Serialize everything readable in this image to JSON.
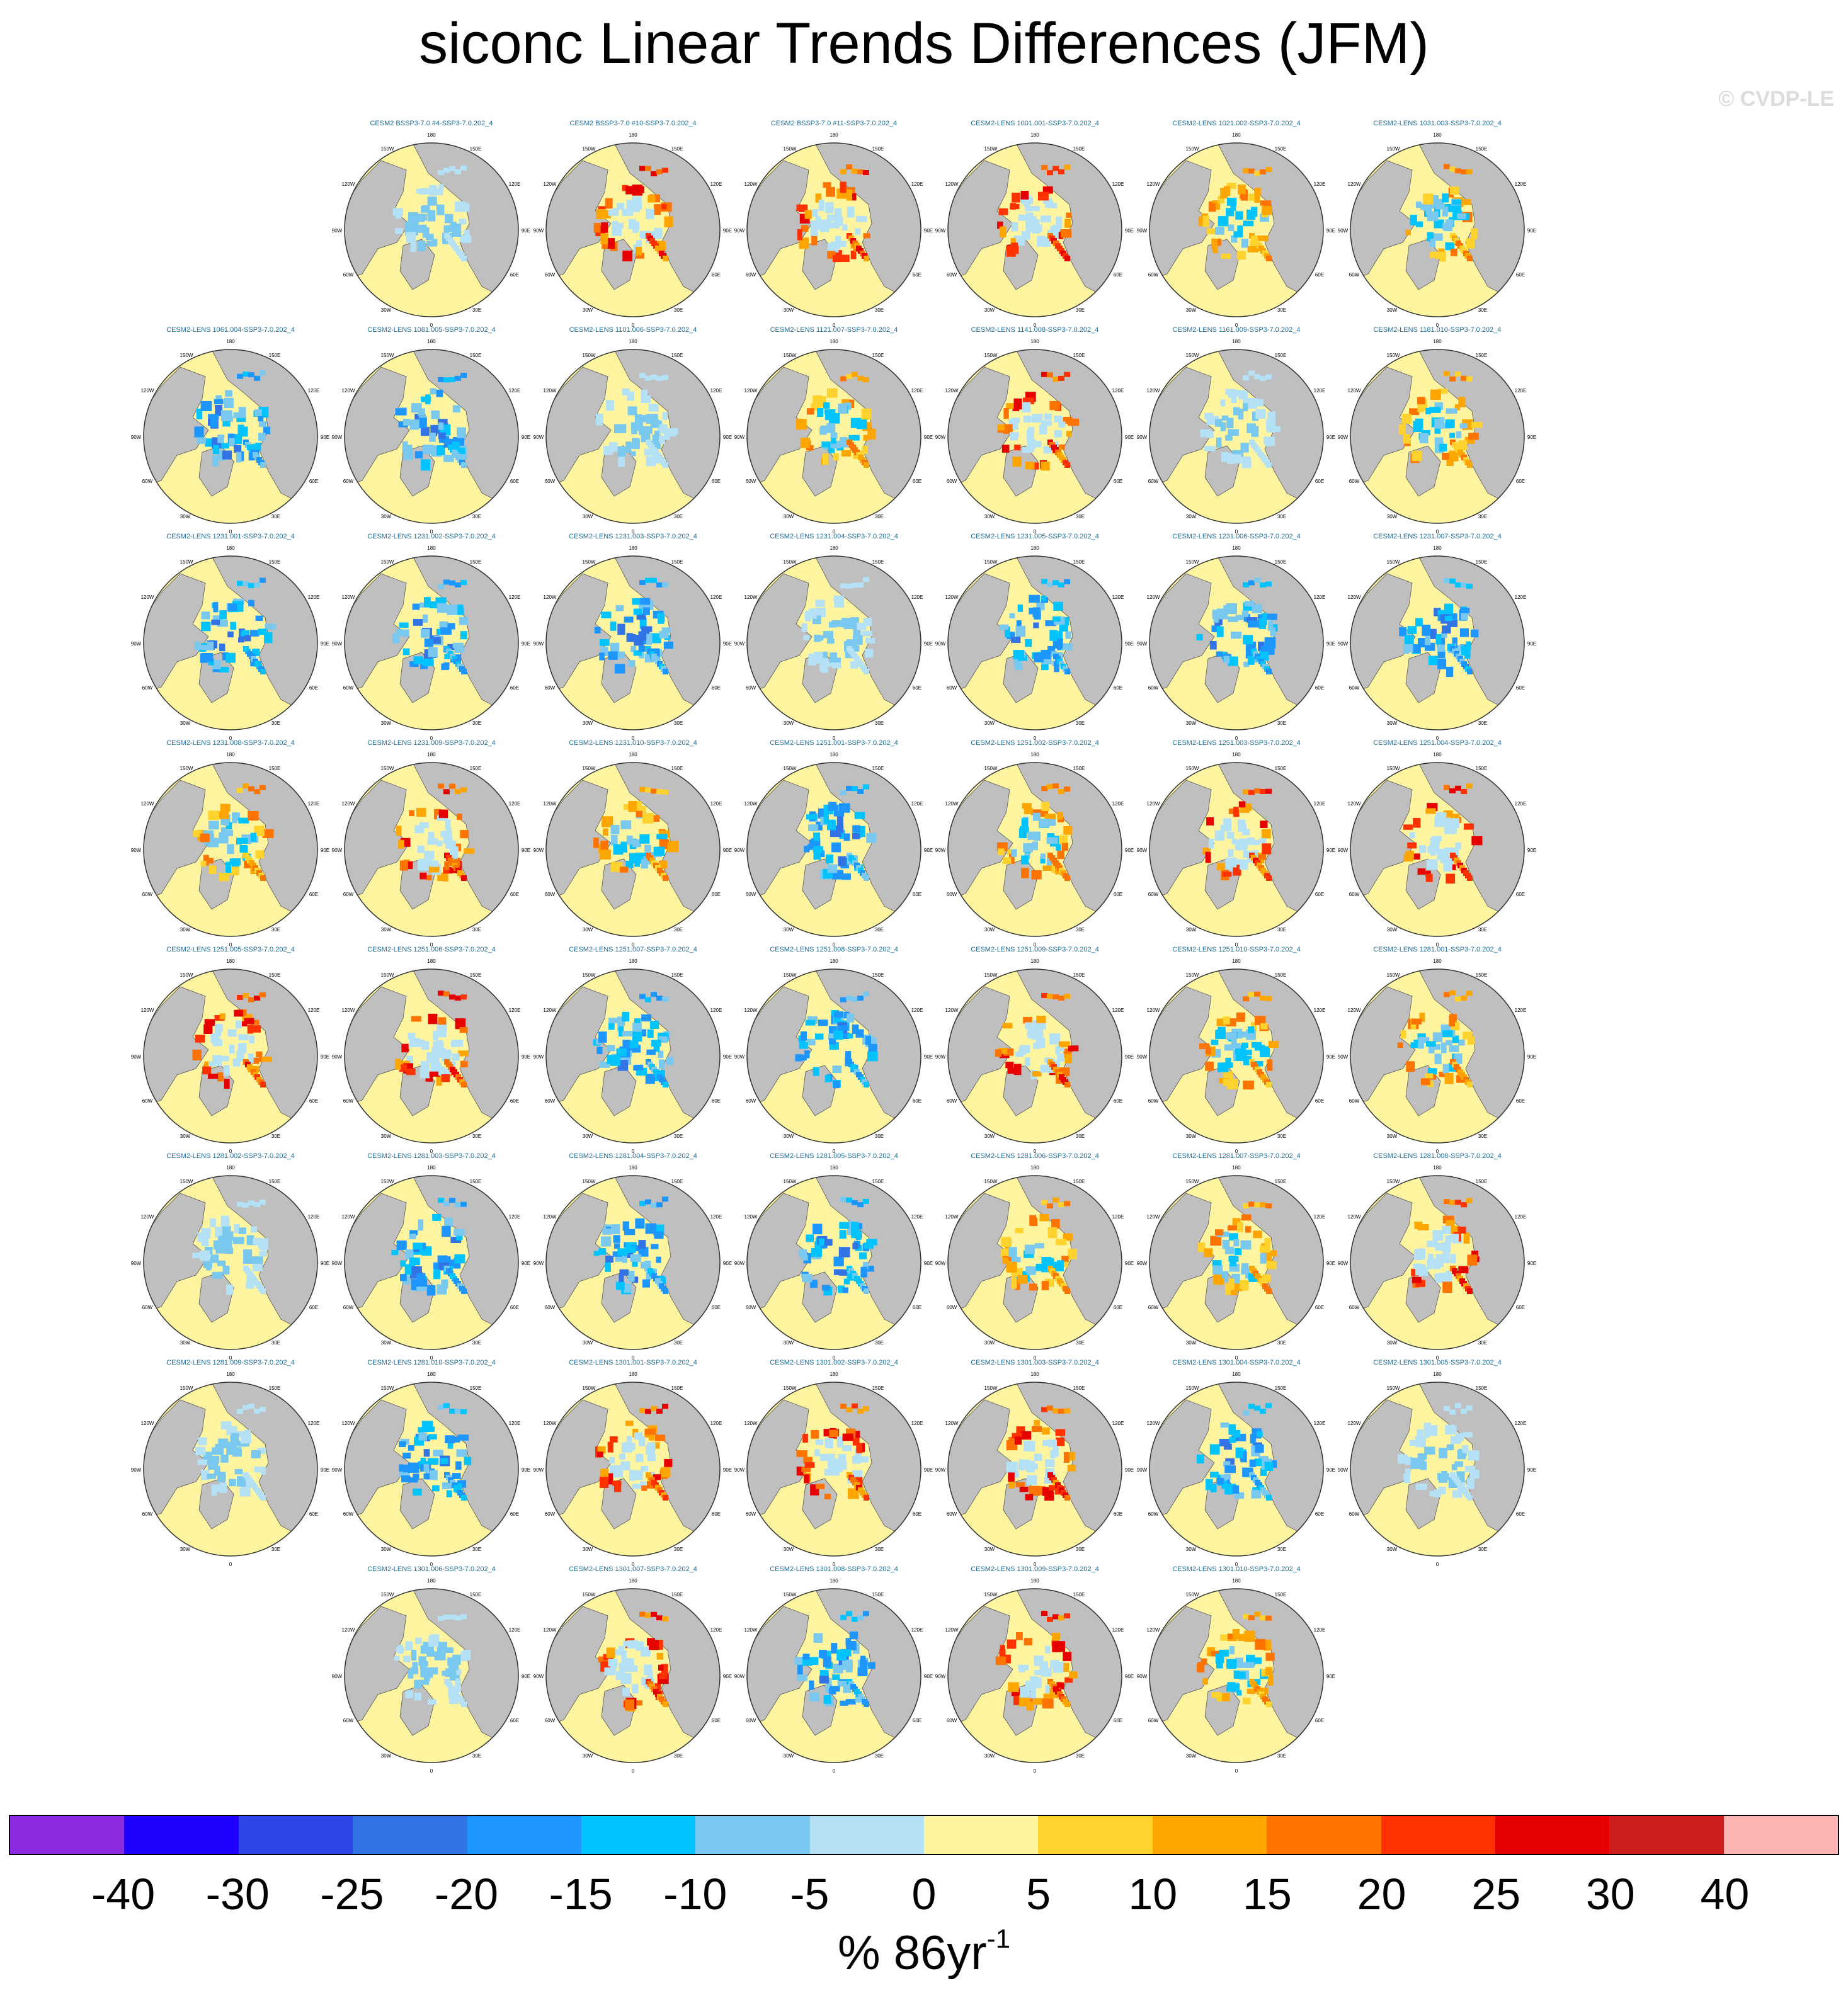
{
  "title": "siconc Linear Trends Differences (JFM)",
  "watermark": "© CVDP-LE",
  "colorbar": {
    "units_main": "% 86yr",
    "units_exp": "-1",
    "colors": [
      "#8a2be2",
      "#1e00ff",
      "#2d46e6",
      "#3273e6",
      "#1e96ff",
      "#00c3ff",
      "#78c8f0",
      "#b4e1f5",
      "#fff5a0",
      "#ffd22d",
      "#ffa500",
      "#ff7300",
      "#ff3200",
      "#e60000",
      "#cd1e1e",
      "#ffb4b4"
    ],
    "labels": [
      "-40",
      "-30",
      "-25",
      "-20",
      "-15",
      "-10",
      "-5",
      "0",
      "5",
      "10",
      "15",
      "20",
      "25",
      "30",
      "40"
    ]
  },
  "map_colors": {
    "ocean": "#fff5a0",
    "land": "#bfbfbf",
    "outline": "#333333"
  },
  "map_labels": [
    "180",
    "150W",
    "150E",
    "120W",
    "120E",
    "90W",
    "90E",
    "60W",
    "60E",
    "30W",
    "30E",
    "0"
  ],
  "panels": [
    {
      "label": "CESM2 BSSP3-7.0 #4-SSP3-7.0.202_4",
      "pattern": "light"
    },
    {
      "label": "CESM2 BSSP3-7.0 #10-SSP3-7.0.202_4",
      "pattern": "warm"
    },
    {
      "label": "CESM2 BSSP3-7.0 #11-SSP3-7.0.202_4",
      "pattern": "warm"
    },
    {
      "label": "CESM2-LENS 1001.001-SSP3-7.0.202_4",
      "pattern": "warm"
    },
    {
      "label": "CESM2-LENS 1021.002-SSP3-7.0.202_4",
      "pattern": "mixed"
    },
    {
      "label": "CESM2-LENS 1031.003-SSP3-7.0.202_4",
      "pattern": "mixed"
    },
    {
      "label": "CESM2-LENS 1061.004-SSP3-7.0.202_4",
      "pattern": "cool"
    },
    {
      "label": "CESM2-LENS 1081.005-SSP3-7.0.202_4",
      "pattern": "cool"
    },
    {
      "label": "CESM2-LENS 1101.006-SSP3-7.0.202_4",
      "pattern": "light"
    },
    {
      "label": "CESM2-LENS 1121.007-SSP3-7.0.202_4",
      "pattern": "mixed"
    },
    {
      "label": "CESM2-LENS 1141.008-SSP3-7.0.202_4",
      "pattern": "warm"
    },
    {
      "label": "CESM2-LENS 1161.009-SSP3-7.0.202_4",
      "pattern": "light"
    },
    {
      "label": "CESM2-LENS 1181.010-SSP3-7.0.202_4",
      "pattern": "mixed"
    },
    {
      "label": "CESM2-LENS 1231.001-SSP3-7.0.202_4",
      "pattern": "cool"
    },
    {
      "label": "CESM2-LENS 1231.002-SSP3-7.0.202_4",
      "pattern": "cool"
    },
    {
      "label": "CESM2-LENS 1231.003-SSP3-7.0.202_4",
      "pattern": "cool"
    },
    {
      "label": "CESM2-LENS 1231.004-SSP3-7.0.202_4",
      "pattern": "light"
    },
    {
      "label": "CESM2-LENS 1231.005-SSP3-7.0.202_4",
      "pattern": "cool"
    },
    {
      "label": "CESM2-LENS 1231.006-SSP3-7.0.202_4",
      "pattern": "cool"
    },
    {
      "label": "CESM2-LENS 1231.007-SSP3-7.0.202_4",
      "pattern": "cool"
    },
    {
      "label": "CESM2-LENS 1231.008-SSP3-7.0.202_4",
      "pattern": "mixed"
    },
    {
      "label": "CESM2-LENS 1231.009-SSP3-7.0.202_4",
      "pattern": "warm"
    },
    {
      "label": "CESM2-LENS 1231.010-SSP3-7.0.202_4",
      "pattern": "mixed"
    },
    {
      "label": "CESM2-LENS 1251.001-SSP3-7.0.202_4",
      "pattern": "cool"
    },
    {
      "label": "CESM2-LENS 1251.002-SSP3-7.0.202_4",
      "pattern": "mixed"
    },
    {
      "label": "CESM2-LENS 1251.003-SSP3-7.0.202_4",
      "pattern": "warm"
    },
    {
      "label": "CESM2-LENS 1251.004-SSP3-7.0.202_4",
      "pattern": "warm"
    },
    {
      "label": "CESM2-LENS 1251.005-SSP3-7.0.202_4",
      "pattern": "warm"
    },
    {
      "label": "CESM2-LENS 1251.006-SSP3-7.0.202_4",
      "pattern": "warm"
    },
    {
      "label": "CESM2-LENS 1251.007-SSP3-7.0.202_4",
      "pattern": "cool"
    },
    {
      "label": "CESM2-LENS 1251.008-SSP3-7.0.202_4",
      "pattern": "cool"
    },
    {
      "label": "CESM2-LENS 1251.009-SSP3-7.0.202_4",
      "pattern": "warm"
    },
    {
      "label": "CESM2-LENS 1251.010-SSP3-7.0.202_4",
      "pattern": "mixed"
    },
    {
      "label": "CESM2-LENS 1281.001-SSP3-7.0.202_4",
      "pattern": "mixed"
    },
    {
      "label": "CESM2-LENS 1281.002-SSP3-7.0.202_4",
      "pattern": "light"
    },
    {
      "label": "CESM2-LENS 1281.003-SSP3-7.0.202_4",
      "pattern": "cool"
    },
    {
      "label": "CESM2-LENS 1281.004-SSP3-7.0.202_4",
      "pattern": "cool"
    },
    {
      "label": "CESM2-LENS 1281.005-SSP3-7.0.202_4",
      "pattern": "cool"
    },
    {
      "label": "CESM2-LENS 1281.006-SSP3-7.0.202_4",
      "pattern": "mixed"
    },
    {
      "label": "CESM2-LENS 1281.007-SSP3-7.0.202_4",
      "pattern": "mixed"
    },
    {
      "label": "CESM2-LENS 1281.008-SSP3-7.0.202_4",
      "pattern": "warm"
    },
    {
      "label": "CESM2-LENS 1281.009-SSP3-7.0.202_4",
      "pattern": "light"
    },
    {
      "label": "CESM2-LENS 1281.010-SSP3-7.0.202_4",
      "pattern": "cool"
    },
    {
      "label": "CESM2-LENS 1301.001-SSP3-7.0.202_4",
      "pattern": "warm"
    },
    {
      "label": "CESM2-LENS 1301.002-SSP3-7.0.202_4",
      "pattern": "warm"
    },
    {
      "label": "CESM2-LENS 1301.003-SSP3-7.0.202_4",
      "pattern": "warm"
    },
    {
      "label": "CESM2-LENS 1301.004-SSP3-7.0.202_4",
      "pattern": "cool"
    },
    {
      "label": "CESM2-LENS 1301.005-SSP3-7.0.202_4",
      "pattern": "light"
    },
    {
      "label": "CESM2-LENS 1301.006-SSP3-7.0.202_4",
      "pattern": "light"
    },
    {
      "label": "CESM2-LENS 1301.007-SSP3-7.0.202_4",
      "pattern": "warm"
    },
    {
      "label": "CESM2-LENS 1301.008-SSP3-7.0.202_4",
      "pattern": "cool"
    },
    {
      "label": "CESM2-LENS 1301.009-SSP3-7.0.202_4",
      "pattern": "warm"
    },
    {
      "label": "CESM2-LENS 1301.010-SSP3-7.0.202_4",
      "pattern": "mixed"
    }
  ]
}
